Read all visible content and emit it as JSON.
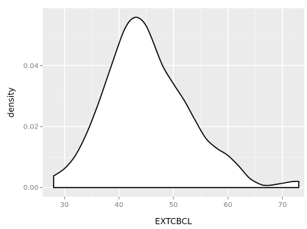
{
  "chart_data": {
    "type": "area",
    "title": "",
    "xlabel": "EXTCBCL",
    "ylabel": "density",
    "xlim": [
      26,
      74
    ],
    "ylim": [
      -0.003,
      0.0588
    ],
    "xticks": [
      30,
      40,
      50,
      60,
      70
    ],
    "xtick_labels": [
      "30",
      "40",
      "50",
      "60",
      "70"
    ],
    "yticks": [
      0.0,
      0.02,
      0.04
    ],
    "ytick_labels": [
      "0.00",
      "0.02",
      "0.04"
    ],
    "grid": true,
    "legend": "none",
    "colors": {
      "panel": "#ebebeb",
      "grid_major": "#ffffff",
      "grid_minor": "#f5f5f5",
      "line": "#000000",
      "fill": "#ffffff"
    },
    "series": [
      {
        "x": [
          28,
          30,
          32,
          34,
          36,
          38,
          40,
          41,
          42,
          43,
          44,
          45,
          46,
          48,
          50,
          52,
          54,
          56,
          58,
          60,
          62,
          64,
          66,
          67,
          68,
          70,
          72,
          73
        ],
        "y": [
          0.0038,
          0.0062,
          0.0105,
          0.0175,
          0.0265,
          0.0368,
          0.0472,
          0.0518,
          0.0547,
          0.0558,
          0.0552,
          0.053,
          0.049,
          0.04,
          0.034,
          0.0285,
          0.022,
          0.016,
          0.0128,
          0.0105,
          0.007,
          0.003,
          0.001,
          0.0007,
          0.0008,
          0.0014,
          0.002,
          0.002
        ]
      }
    ]
  }
}
